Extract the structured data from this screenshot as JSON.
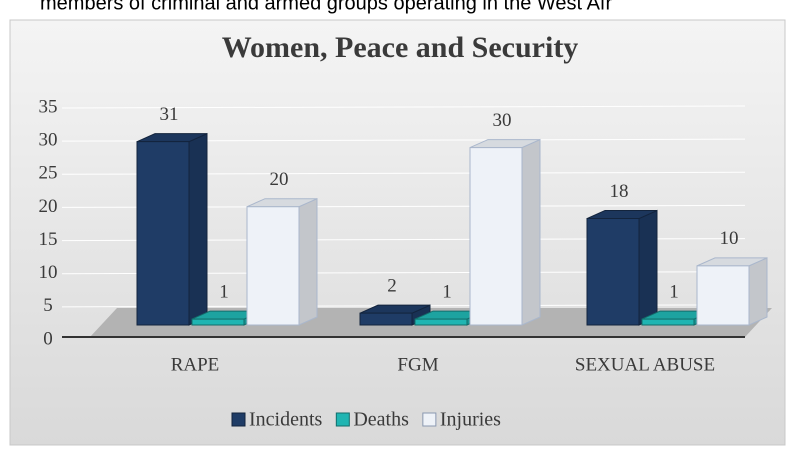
{
  "page_text": "members of criminal and armed groups operating in the West Afr",
  "chart_data": {
    "type": "bar3d",
    "title": "Women, Peace and Security",
    "categories": [
      "RAPE",
      "FGM",
      "SEXUAL ABUSE"
    ],
    "series": [
      {
        "name": "Incidents",
        "color": "#1f3c66",
        "values": [
          31,
          2,
          18
        ]
      },
      {
        "name": "Deaths",
        "color": "#20b5b2",
        "values": [
          1,
          1,
          1
        ]
      },
      {
        "name": "Injuries",
        "color": "#eef2f8",
        "values": [
          20,
          30,
          10
        ]
      }
    ],
    "ylim": [
      0,
      35
    ],
    "yticks": [
      0,
      5,
      10,
      15,
      20,
      25,
      30,
      35
    ],
    "grid": true,
    "legend": "bottom"
  }
}
